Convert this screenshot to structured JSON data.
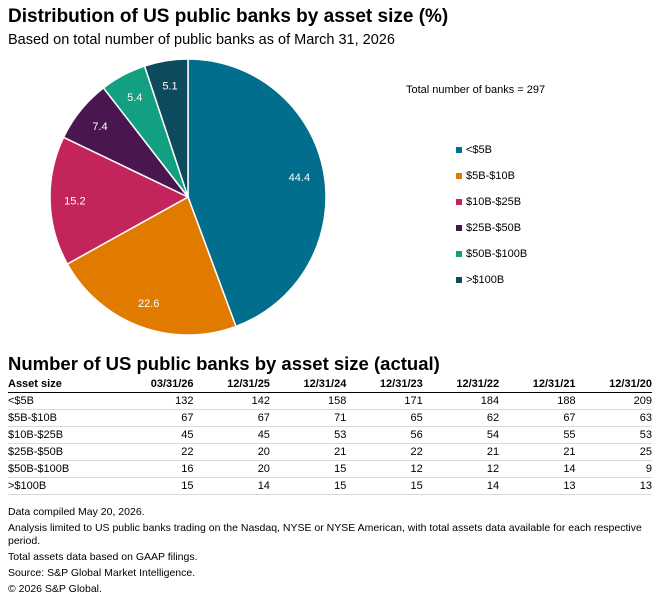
{
  "chart_data": [
    {
      "type": "pie",
      "title": "Distribution of US public banks by asset size (%)",
      "subtitle": "Based on total number of public banks as of March 31, 2026",
      "annotation": "Total number of banks = 297",
      "legend_position": "right",
      "slices": [
        {
          "label": "<$5B",
          "value": 44.4,
          "value_label": "44.4",
          "color": "#006e8c"
        },
        {
          "label": "$5B-$10B",
          "value": 22.6,
          "value_label": "22.6",
          "color": "#e07b00"
        },
        {
          "label": "$10B-$25B",
          "value": 15.2,
          "value_label": "15.2",
          "color": "#c3245c"
        },
        {
          "label": "$25B-$50B",
          "value": 7.4,
          "value_label": "7.4",
          "color": "#4a1650"
        },
        {
          "label": "$50B-$100B",
          "value": 5.4,
          "value_label": "5.4",
          "color": "#13a080"
        },
        {
          "label": ">$100B",
          "value": 5.1,
          "value_label": "5.1",
          "color": "#0d4a5e"
        }
      ]
    },
    {
      "type": "table",
      "title": "Number of US public banks by asset size (actual)",
      "columns": [
        "Asset size",
        "03/31/26",
        "12/31/25",
        "12/31/24",
        "12/31/23",
        "12/31/22",
        "12/31/21",
        "12/31/20"
      ],
      "rows": [
        [
          "<$5B",
          "132",
          "142",
          "158",
          "171",
          "184",
          "188",
          "209"
        ],
        [
          "$5B-$10B",
          "67",
          "67",
          "71",
          "65",
          "62",
          "67",
          "63"
        ],
        [
          "$10B-$25B",
          "45",
          "45",
          "53",
          "56",
          "54",
          "55",
          "53"
        ],
        [
          "$25B-$50B",
          "22",
          "20",
          "21",
          "22",
          "21",
          "21",
          "25"
        ],
        [
          "$50B-$100B",
          "16",
          "20",
          "15",
          "12",
          "12",
          "14",
          "9"
        ],
        [
          ">$100B",
          "15",
          "14",
          "15",
          "15",
          "14",
          "13",
          "13"
        ]
      ]
    }
  ],
  "notes": [
    "Data compiled May 20, 2026.",
    "Analysis limited to US public banks trading on the Nasdaq, NYSE or NYSE American, with total assets data available for each respective period.",
    "Total assets data based on GAAP filings.",
    "Source: S&P Global Market Intelligence.",
    "© 2026 S&P Global."
  ]
}
